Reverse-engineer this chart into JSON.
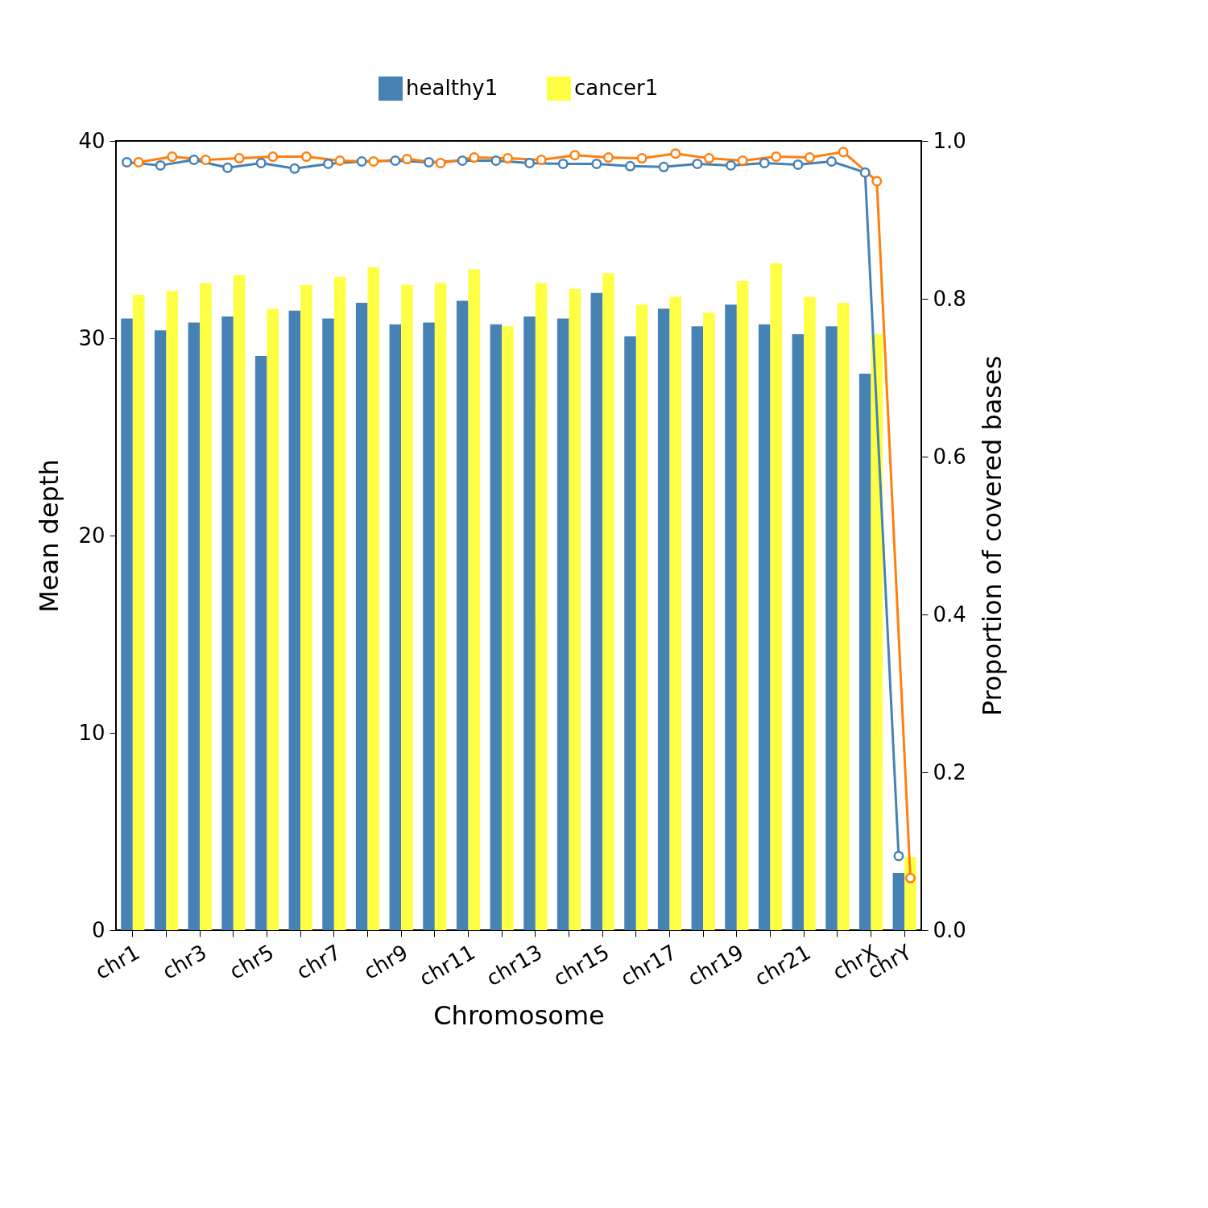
{
  "chart_data": {
    "type": "bar",
    "xlabel": "Chromosome",
    "ylabel": "Mean depth",
    "y2label": "Proportion of covered bases",
    "categories": [
      "chr1",
      null,
      "chr3",
      null,
      "chr5",
      null,
      "chr7",
      null,
      "chr9",
      null,
      "chr11",
      null,
      "chr13",
      null,
      "chr15",
      null,
      "chr17",
      null,
      "chr19",
      null,
      "chr21",
      null,
      "chrX",
      "chrY"
    ],
    "series": [
      {
        "name": "healthy1",
        "color": "#4682b4",
        "values": [
          31.0,
          30.4,
          30.8,
          31.1,
          29.1,
          31.4,
          31.0,
          31.8,
          30.7,
          30.8,
          31.9,
          30.7,
          31.1,
          31.0,
          32.3,
          30.1,
          31.5,
          30.6,
          31.7,
          30.7,
          30.2,
          30.6,
          28.2,
          2.9
        ]
      },
      {
        "name": "cancer1",
        "color": "#ffff44",
        "values": [
          32.2,
          32.4,
          32.8,
          33.2,
          31.5,
          32.7,
          33.1,
          33.6,
          32.7,
          32.8,
          33.5,
          30.6,
          32.8,
          32.5,
          33.3,
          31.7,
          32.1,
          31.3,
          32.9,
          33.8,
          32.1,
          31.8,
          30.2,
          3.7
        ]
      },
      {
        "type": "line",
        "axis": "y2",
        "color": "#4682b4",
        "values": [
          0.973,
          0.969,
          0.976,
          0.966,
          0.972,
          0.965,
          0.971,
          0.974,
          0.975,
          0.973,
          0.975,
          0.975,
          0.972,
          0.971,
          0.971,
          0.968,
          0.967,
          0.971,
          0.969,
          0.972,
          0.97,
          0.974,
          0.96,
          0.094
        ]
      },
      {
        "type": "line",
        "axis": "y2",
        "color": "#ff7f0e",
        "values": [
          0.973,
          0.98,
          0.976,
          0.978,
          0.98,
          0.98,
          0.975,
          0.974,
          0.977,
          0.972,
          0.979,
          0.978,
          0.976,
          0.982,
          0.979,
          0.978,
          0.984,
          0.978,
          0.975,
          0.98,
          0.979,
          0.986,
          0.949,
          0.066
        ]
      }
    ],
    "ylim": [
      0,
      40
    ],
    "yticks": [
      0,
      10,
      20,
      30,
      40
    ],
    "y2lim": [
      0,
      1
    ],
    "y2ticks": [
      {
        "value": 0,
        "label": "0.0"
      },
      0.2,
      0.4,
      0.6,
      0.8,
      {
        "value": 1,
        "label": "1.0"
      }
    ],
    "marker": "circle",
    "line_style": "solid",
    "legend": "top",
    "grid": false
  }
}
